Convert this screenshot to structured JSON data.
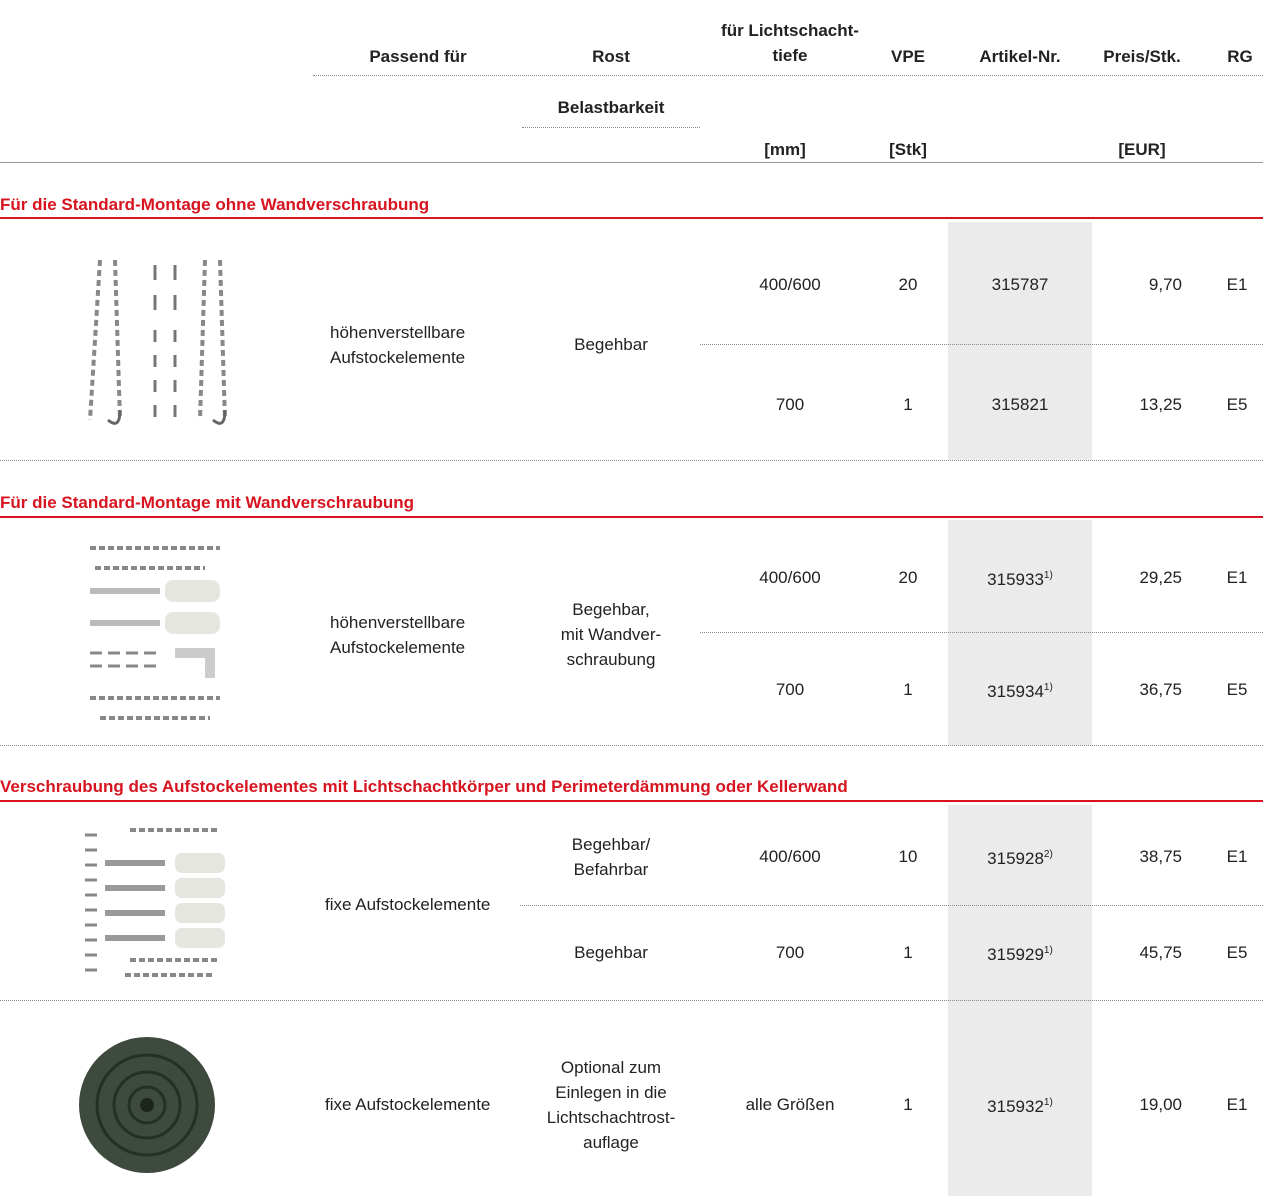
{
  "header": {
    "passend": "Passend für",
    "rost": "Rost",
    "tiefe": [
      "für Lichtschacht-",
      "tiefe"
    ],
    "vpe": "VPE",
    "artikel": "Artikel-Nr.",
    "preis": "Preis/Stk.",
    "rg": "RG",
    "belastbarkeit": "Belastbarkeit",
    "units": {
      "tiefe": "[mm]",
      "vpe": "[Stk]",
      "preis": "[EUR]"
    }
  },
  "groups": [
    {
      "title": "Für die Standard-Montage ohne Wandverschraubung",
      "passend": [
        "höhenverstellbare",
        "Aufstockelemente"
      ],
      "rost": [
        "Begehbar"
      ],
      "rows": [
        {
          "tiefe": "400/600",
          "vpe": 20,
          "artikel": 315787,
          "preis": "9,70",
          "rg": "E1"
        },
        {
          "tiefe": "700",
          "vpe": 1,
          "artikel": 315821,
          "preis": "13,25",
          "rg": "E5"
        }
      ]
    },
    {
      "title": "Für die Standard-Montage mit Wandverschraubung",
      "passend": [
        "höhenverstellbare",
        "Aufstockelemente"
      ],
      "rost": [
        "Begehbar,",
        "mit Wandver-",
        "schraubung"
      ],
      "rows": [
        {
          "tiefe": "400/600",
          "vpe": 20,
          "artikel": 315933,
          "footnote": "1)",
          "preis": "29,25",
          "rg": "E1"
        },
        {
          "tiefe": "700",
          "vpe": 1,
          "artikel": 315934,
          "footnote": "1)",
          "preis": "36,75",
          "rg": "E5"
        }
      ]
    },
    {
      "title": "Verschraubung des Aufstockelementes mit Lichtschachtkörper und Perimeterdämmung oder Kellerwand",
      "passend": [
        "fixe Aufstockelemente"
      ],
      "rows": [
        {
          "rost": [
            "Begehbar/",
            "Befahrbar"
          ],
          "tiefe": "400/600",
          "vpe": 10,
          "artikel": 315928,
          "footnote": "2)",
          "preis": "38,75",
          "rg": "E1"
        },
        {
          "rost": [
            "Begehbar"
          ],
          "tiefe": "700",
          "vpe": 1,
          "artikel": 315929,
          "footnote": "1)",
          "preis": "45,75",
          "rg": "E5"
        }
      ]
    },
    {
      "passend": [
        "fixe Aufstockelemente"
      ],
      "rost": [
        "Optional zum",
        "Einlegen in die",
        "Lichtschachtrost-",
        "auflage"
      ],
      "rows": [
        {
          "tiefe": "alle Größen",
          "vpe": 1,
          "artikel": 315932,
          "footnote": "1)",
          "preis": "19,00",
          "rg": "E1"
        }
      ]
    }
  ]
}
